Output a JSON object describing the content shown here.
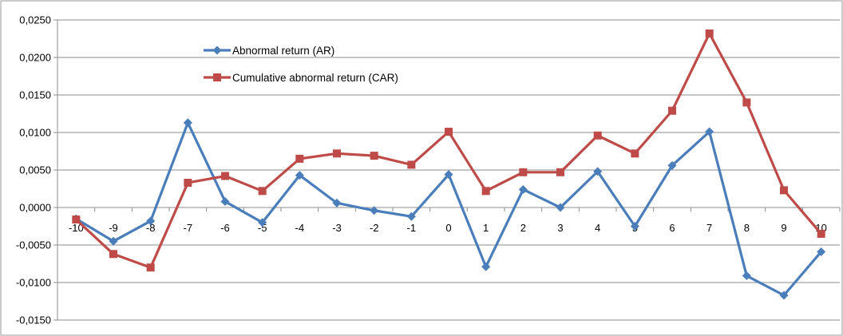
{
  "chart_data": {
    "type": "line",
    "title": "",
    "xlabel": "",
    "ylabel": "",
    "categories": [
      "-10",
      "-9",
      "-8",
      "-7",
      "-6",
      "-5",
      "-4",
      "-3",
      "-2",
      "-1",
      "0",
      "1",
      "2",
      "3",
      "4",
      "5",
      "6",
      "7",
      "8",
      "9",
      "10"
    ],
    "ylim": [
      -0.015,
      0.025
    ],
    "yticks": [
      0.025,
      0.02,
      0.015,
      0.01,
      0.005,
      0.0,
      -0.005,
      -0.01,
      -0.015
    ],
    "ytick_labels": [
      "0,0250",
      "0,0200",
      "0,0150",
      "0,0100",
      "0,0050",
      "0,0000",
      "-0,0050",
      "-0,0100",
      "-0,0150"
    ],
    "grid": true,
    "legend_position": "top-left",
    "series": [
      {
        "name": "Abnormal return (AR)",
        "color": "#4A7EBB",
        "marker": "diamond",
        "values": [
          -0.0015,
          -0.0045,
          -0.0018,
          0.0113,
          0.0008,
          -0.002,
          0.0043,
          0.0006,
          -0.0004,
          -0.0012,
          0.0044,
          -0.0079,
          0.0024,
          0.0,
          0.0048,
          -0.0025,
          0.0056,
          0.0101,
          -0.0091,
          -0.0117,
          -0.0059
        ]
      },
      {
        "name": "Cumulative abnormal return (CAR)",
        "color": "#BE4B48",
        "marker": "square",
        "values": [
          -0.0016,
          -0.0062,
          -0.008,
          0.0033,
          0.0042,
          0.0022,
          0.0065,
          0.0072,
          0.0069,
          0.0057,
          0.0101,
          0.0022,
          0.0047,
          0.0047,
          0.0096,
          0.0072,
          0.0129,
          0.0232,
          0.014,
          0.0023,
          -0.0035
        ]
      }
    ]
  }
}
